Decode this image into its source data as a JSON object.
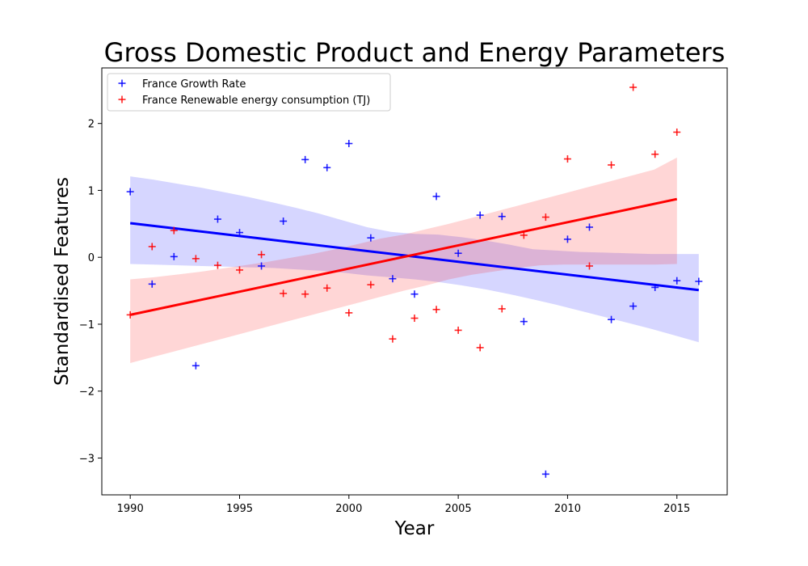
{
  "chart_data": {
    "type": "scatter",
    "title": "Gross Domestic Product and Energy Parameters",
    "xlabel": "Year",
    "ylabel": "Standardised Features",
    "xlim": [
      1988.7,
      2017.3
    ],
    "ylim": [
      -3.55,
      2.83
    ],
    "xticks": [
      1990,
      1995,
      2000,
      2005,
      2010,
      2015
    ],
    "yticks": [
      -3,
      -2,
      -1,
      0,
      1,
      2
    ],
    "legend_position": "top-left",
    "grid": false,
    "series": [
      {
        "name": "France Growth Rate",
        "color": "#0000ff",
        "marker": "plus",
        "x": [
          1990,
          1991,
          1992,
          1993,
          1994,
          1995,
          1996,
          1997,
          1998,
          1999,
          2000,
          2001,
          2002,
          2003,
          2004,
          2005,
          2006,
          2007,
          2008,
          2009,
          2010,
          2011,
          2012,
          2013,
          2014,
          2015,
          2016
        ],
        "y": [
          0.98,
          -0.4,
          0.01,
          -1.62,
          0.57,
          0.37,
          -0.13,
          0.54,
          1.46,
          1.34,
          1.7,
          0.29,
          -0.32,
          -0.55,
          0.91,
          0.06,
          0.63,
          0.61,
          -0.96,
          -3.24,
          0.27,
          0.45,
          -0.93,
          -0.73,
          -0.45,
          -0.35,
          -0.36
        ],
        "regression": {
          "x": [
            1990,
            2016
          ],
          "y": [
            0.51,
            -0.49
          ],
          "ci_upper": [
            1.21,
            1.16,
            1.1,
            1.04,
            0.97,
            0.9,
            0.82,
            0.74,
            0.65,
            0.55,
            0.45,
            0.38,
            0.35,
            0.34,
            0.3,
            0.25,
            0.19,
            0.12,
            0.1,
            0.08,
            0.07,
            0.06,
            0.05,
            0.05,
            0.05
          ],
          "ci_lower": [
            -0.1,
            -0.11,
            -0.12,
            -0.13,
            -0.14,
            -0.15,
            -0.16,
            -0.18,
            -0.2,
            -0.23,
            -0.27,
            -0.3,
            -0.33,
            -0.37,
            -0.42,
            -0.48,
            -0.55,
            -0.63,
            -0.71,
            -0.8,
            -0.89,
            -0.98,
            -1.07,
            -1.17,
            -1.27
          ],
          "ci_x": [
            1990,
            1991.08,
            1992.17,
            1993.25,
            1994.33,
            1995.42,
            1996.5,
            1997.58,
            1998.67,
            1999.75,
            2000.83,
            2001.92,
            2003,
            2004.08,
            2005.17,
            2006.25,
            2007.33,
            2008.42,
            2009.5,
            2010.58,
            2011.67,
            2012.75,
            2013.83,
            2014.92,
            2016
          ]
        }
      },
      {
        "name": "France Renewable energy consumption (TJ)",
        "color": "#ff0000",
        "marker": "plus",
        "x": [
          1990,
          1991,
          1992,
          1993,
          1994,
          1995,
          1996,
          1997,
          1998,
          1999,
          2000,
          2001,
          2002,
          2003,
          2004,
          2005,
          2006,
          2007,
          2008,
          2009,
          2010,
          2011,
          2012,
          2013,
          2014,
          2015
        ],
        "y": [
          -0.86,
          0.16,
          0.4,
          -0.02,
          -0.12,
          -0.19,
          0.04,
          -0.54,
          -0.55,
          -0.46,
          -0.83,
          -0.41,
          -1.22,
          -0.91,
          -0.78,
          -1.09,
          -1.35,
          -0.77,
          0.33,
          0.6,
          1.47,
          -0.13,
          1.38,
          2.54,
          1.54,
          1.87
        ],
        "regression": {
          "x": [
            1990,
            2015
          ],
          "y": [
            -0.86,
            0.87
          ],
          "ci_upper": [
            -0.33,
            -0.3,
            -0.26,
            -0.22,
            -0.17,
            -0.12,
            -0.07,
            -0.01,
            0.05,
            0.12,
            0.2,
            0.28,
            0.34,
            0.42,
            0.5,
            0.59,
            0.68,
            0.77,
            0.86,
            0.95,
            1.04,
            1.13,
            1.22,
            1.31,
            1.49
          ],
          "ci_lower": [
            -1.58,
            -1.49,
            -1.4,
            -1.31,
            -1.22,
            -1.13,
            -1.04,
            -0.95,
            -0.86,
            -0.77,
            -0.68,
            -0.59,
            -0.5,
            -0.42,
            -0.33,
            -0.26,
            -0.21,
            -0.16,
            -0.12,
            -0.11,
            -0.11,
            -0.11,
            -0.11,
            -0.11,
            -0.1
          ],
          "ci_x": [
            1990,
            1991.04,
            1992.08,
            1993.13,
            1994.17,
            1995.21,
            1996.25,
            1997.29,
            1998.33,
            1999.38,
            2000.42,
            2001.46,
            2002.5,
            2003.54,
            2004.58,
            2005.63,
            2006.67,
            2007.71,
            2008.75,
            2009.79,
            2010.83,
            2011.88,
            2012.92,
            2013.96,
            2015
          ]
        }
      }
    ]
  }
}
